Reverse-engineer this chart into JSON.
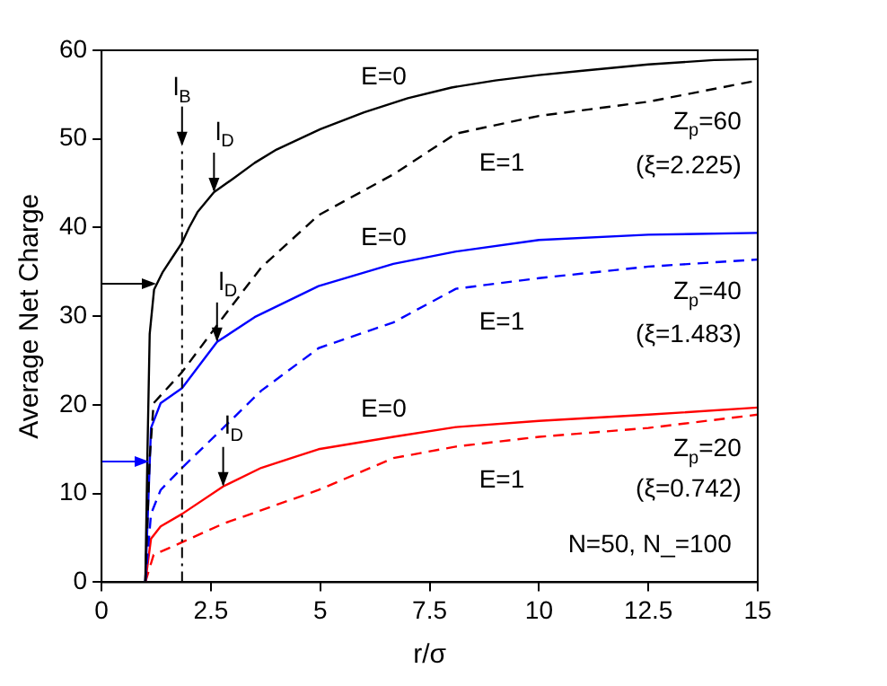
{
  "chart_data": {
    "type": "line",
    "xlabel": "r/σ",
    "ylabel": "Average Net Charge",
    "xlim": [
      0,
      15
    ],
    "xticks": [
      0,
      2.5,
      5,
      7.5,
      10,
      12.5,
      15
    ],
    "ylim": [
      0,
      60
    ],
    "yticks": [
      0,
      10,
      20,
      30,
      40,
      50,
      60
    ],
    "grid": false,
    "legend": false,
    "marker": "none",
    "series": [
      {
        "name": "E=0",
        "color": "#000000",
        "line_style": "solid",
        "x": [
          1,
          1.05,
          1.1,
          1.2,
          1.4,
          1.6,
          1.84,
          2,
          2.2,
          2.57,
          3,
          3.5,
          4,
          5,
          6,
          7,
          8,
          9,
          10,
          11,
          12.5,
          14,
          15
        ],
        "values": [
          0,
          15,
          28,
          33,
          35,
          36.5,
          38.3,
          40,
          41.8,
          44,
          45.5,
          47.3,
          48.8,
          51.1,
          53,
          54.6,
          55.8,
          56.6,
          57.2,
          57.7,
          58.4,
          58.9,
          59
        ]
      },
      {
        "name": "E=1",
        "color": "#000000",
        "line_style": "dashed",
        "x": [
          1,
          1.1,
          1.19,
          1.84,
          2.78,
          3.65,
          4.96,
          6.67,
          8.1,
          10,
          12.5,
          15
        ],
        "values": [
          0,
          14,
          20.2,
          23.7,
          29.9,
          35.5,
          41.4,
          46,
          50.6,
          52.6,
          54.2,
          56.6
        ]
      },
      {
        "name": "E=0",
        "color": "#0000ff",
        "line_style": "solid",
        "x": [
          1,
          1.13,
          1.35,
          1.84,
          2.64,
          3.5,
          4.96,
          6.67,
          8.1,
          10,
          12.5,
          15
        ],
        "values": [
          0,
          17.4,
          20.2,
          21.9,
          27.1,
          29.9,
          33.4,
          35.9,
          37.3,
          38.6,
          39.2,
          39.4
        ]
      },
      {
        "name": "E=1",
        "color": "#0000ff",
        "line_style": "dashed",
        "x": [
          1,
          1.13,
          1.35,
          1.84,
          2.78,
          3.65,
          4.96,
          6.67,
          8.1,
          10,
          12.5,
          15
        ],
        "values": [
          0,
          7.7,
          10.4,
          12.9,
          17.4,
          21.6,
          26.4,
          29.3,
          33.1,
          34.3,
          35.6,
          36.4
        ]
      },
      {
        "name": "E=0",
        "color": "#ff0000",
        "line_style": "solid",
        "x": [
          1,
          1.13,
          1.35,
          1.84,
          2.78,
          3.65,
          4.96,
          6.67,
          8.1,
          10,
          12.5,
          15
        ],
        "values": [
          0,
          4.9,
          6.3,
          7.7,
          10.8,
          12.9,
          15,
          16.4,
          17.5,
          18.2,
          18.9,
          19.7
        ]
      },
      {
        "name": "E=1",
        "color": "#ff0000",
        "line_style": "dashed",
        "x": [
          1,
          1.19,
          1.84,
          2.78,
          4.96,
          6.67,
          8.1,
          10,
          12.5,
          15
        ],
        "values": [
          0,
          3.1,
          4.5,
          6.6,
          10.4,
          14,
          15.3,
          16.4,
          17.4,
          18.9
        ]
      }
    ],
    "ref_lines": [
      {
        "axis": "x",
        "value": 1.84,
        "label": "l$_{B}$",
        "line_style": "dashed",
        "color": "#000000"
      }
    ],
    "annotations": [
      {
        "text": "l$_{D}$",
        "x": 2.57,
        "y": 44
      },
      {
        "text": "l$_{D}$",
        "x": 2.64,
        "y": 27.1
      },
      {
        "text": "l$_{D}$",
        "x": 2.78,
        "y": 10.8
      },
      "Z$_{p}$=60",
      "(ξ=2.225)",
      "Z$_{p}$=40",
      "(ξ=1.483)",
      "Z$_{p}$=20",
      "(ξ=0.742)",
      "N=50, N_=100"
    ]
  }
}
